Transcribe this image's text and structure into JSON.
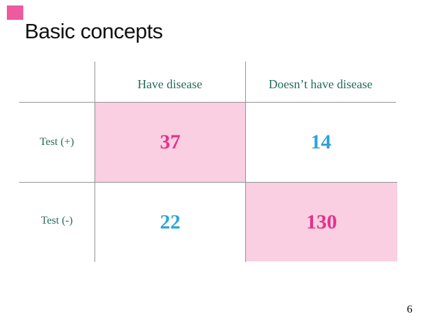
{
  "slide": {
    "title": "Basic concepts",
    "page_number": "6"
  },
  "table": {
    "columns": [
      {
        "label": "Have disease"
      },
      {
        "label": "Doesn’t have disease"
      }
    ],
    "rows": [
      {
        "label": "Test (+)",
        "cells": [
          {
            "value": "37",
            "text_color": "#E5308C",
            "bg": "#F9CFE1"
          },
          {
            "value": "14",
            "text_color": "#2FA3DA",
            "bg": "transparent"
          }
        ]
      },
      {
        "label": "Test (-)",
        "cells": [
          {
            "value": "22",
            "text_color": "#2FA3DA",
            "bg": "transparent"
          },
          {
            "value": "130",
            "text_color": "#E5308C",
            "bg": "#F9CFE1"
          }
        ]
      }
    ]
  },
  "colors": {
    "title_black": "#111111",
    "label_teal": "#266A5B",
    "number_magenta": "#E5308C",
    "number_cyan": "#2FA3DA",
    "cell_pink": "#F9CFE1",
    "grid_gray": "#919191",
    "corner_accent_pink": "#EE5A9E"
  }
}
